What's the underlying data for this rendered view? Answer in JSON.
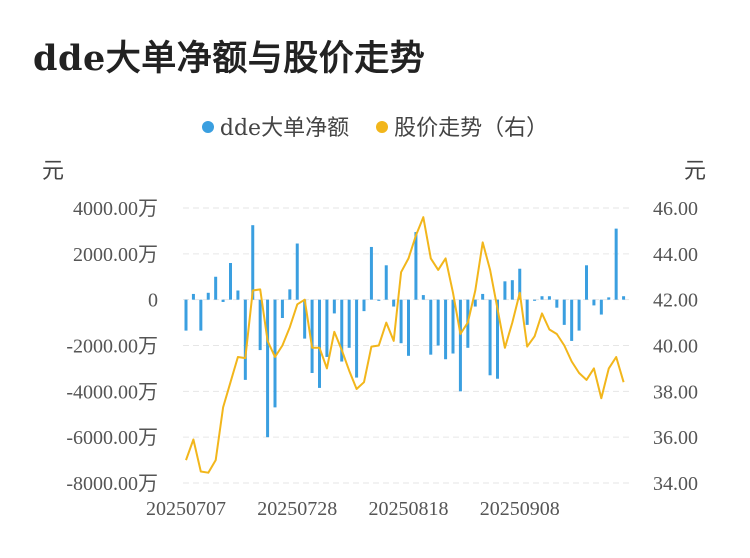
{
  "title": "dde大单净额与股价走势",
  "legend": [
    {
      "label": "dde大单净额",
      "color": "#3a9fe0"
    },
    {
      "label": "股价走势（右）",
      "color": "#f2b61b"
    }
  ],
  "chart_data": {
    "type": "bar+line",
    "left_unit": "元",
    "right_unit": "元",
    "left_ticks": [
      "4000.00万",
      "2000.00万",
      "0",
      "-2000.00万",
      "-4000.00万",
      "-6000.00万",
      "-8000.00万"
    ],
    "right_ticks": [
      "46.00",
      "44.00",
      "42.00",
      "40.00",
      "38.00",
      "36.00",
      "34.00"
    ],
    "x_tick_labels": [
      "20250707",
      "20250728",
      "20250818",
      "20250908"
    ],
    "left_ylim": [
      -8000,
      4000
    ],
    "right_ylim": [
      34,
      46
    ],
    "series": [
      {
        "name": "dde大单净额",
        "kind": "bar",
        "unit": "万",
        "values": [
          -1350,
          250,
          -1350,
          300,
          1000,
          -100,
          1600,
          400,
          -3500,
          3250,
          -2200,
          -6000,
          -4700,
          -800,
          450,
          2450,
          -1700,
          -3200,
          -3850,
          -2500,
          -600,
          -2700,
          -2100,
          -3400,
          -500,
          2300,
          -50,
          1500,
          -300,
          -1900,
          -2450,
          2950,
          200,
          -2400,
          -2000,
          -2600,
          -2350,
          -4000,
          -2100,
          -300,
          250,
          -3300,
          -3450,
          800,
          850,
          1350,
          -1100,
          -50,
          150,
          150,
          -350,
          -1100,
          -1800,
          -1350,
          1500,
          -250,
          -650,
          100,
          3100,
          150
        ]
      },
      {
        "name": "股价走势（右）",
        "kind": "line",
        "values": [
          35.0,
          35.9,
          34.5,
          34.45,
          35.0,
          37.3,
          38.4,
          39.5,
          39.45,
          42.4,
          42.45,
          40.2,
          39.5,
          40.0,
          40.8,
          41.8,
          42.0,
          39.9,
          39.9,
          39.0,
          40.6,
          39.8,
          38.9,
          38.1,
          38.4,
          39.95,
          40.0,
          41.0,
          40.2,
          43.2,
          43.8,
          44.8,
          45.6,
          43.8,
          43.3,
          43.8,
          42.3,
          40.5,
          41.0,
          42.4,
          44.5,
          43.3,
          41.6,
          39.9,
          41.0,
          42.3,
          39.95,
          40.4,
          41.4,
          40.7,
          40.5,
          40.0,
          39.3,
          38.8,
          38.5,
          39.0,
          37.7,
          39.0,
          39.5,
          38.4
        ]
      }
    ]
  }
}
